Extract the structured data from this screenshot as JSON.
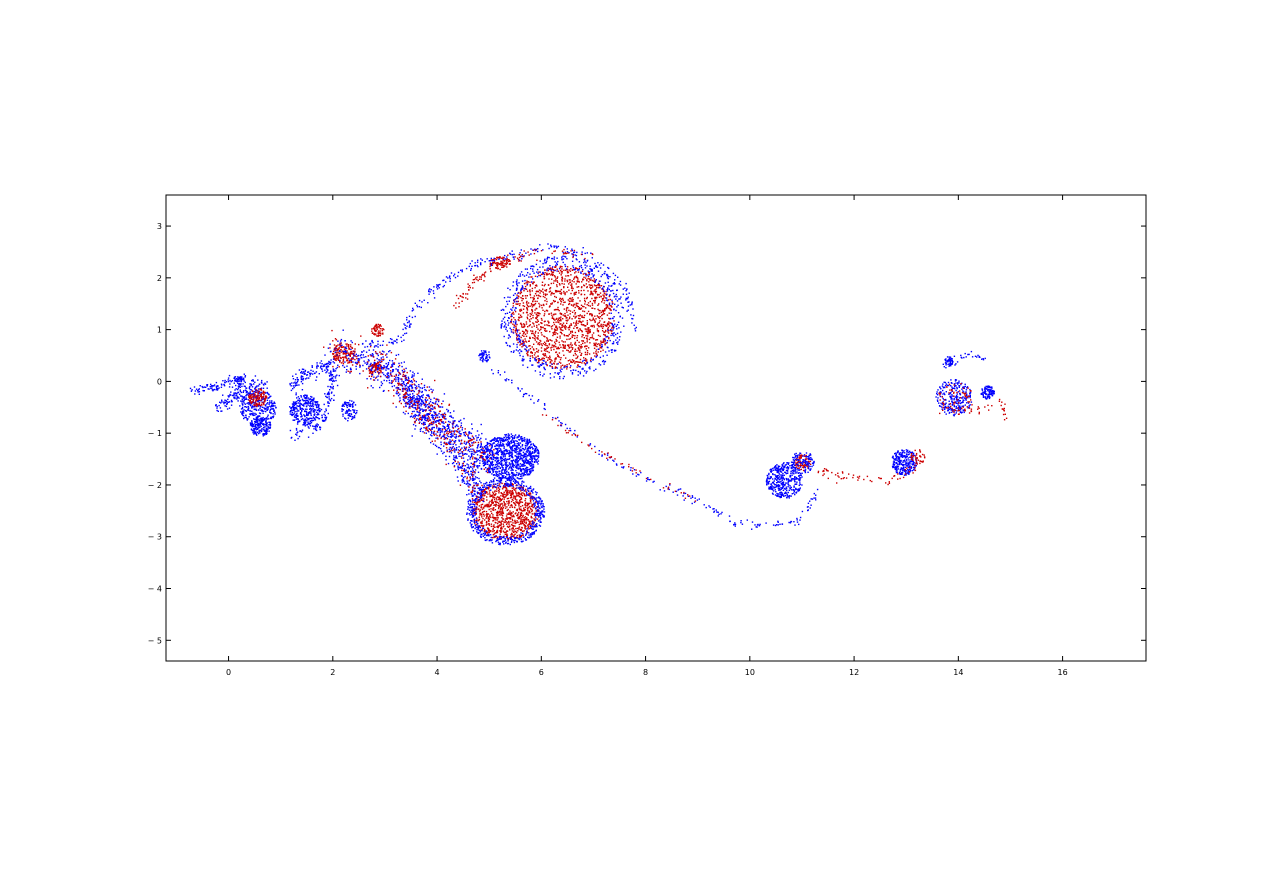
{
  "chart_data": {
    "type": "scatter",
    "title": "",
    "xlabel": "",
    "ylabel": "",
    "xlim": [
      -1.2,
      17.6
    ],
    "ylim": [
      -5.4,
      3.6
    ],
    "xticks": [
      0,
      2,
      4,
      6,
      8,
      10,
      12,
      14,
      16
    ],
    "yticks": [
      3,
      2,
      1,
      0,
      -1,
      -2,
      -3,
      -4,
      -5
    ],
    "xtick_labels": [
      "0",
      "2",
      "4",
      "6",
      "8",
      "10",
      "12",
      "14",
      "16"
    ],
    "ytick_labels": [
      "3",
      "2",
      "1",
      "0",
      "− 1",
      "− 2",
      "− 3",
      "− 4",
      "− 5"
    ],
    "grid": false,
    "legend": "none",
    "series_colors": {
      "blue": "#0000ff",
      "red": "#cc0000"
    },
    "point_clusters": [
      {
        "name": "large-upper-vortex",
        "color": "red",
        "x": 6.4,
        "y": 1.25,
        "radius_x": 1.0,
        "radius_y": 1.0,
        "count": 1400
      },
      {
        "name": "large-upper-vortex-ring",
        "color": "blue",
        "x": 6.4,
        "y": 1.25,
        "radius_x": 1.2,
        "radius_y": 1.2,
        "count": 500,
        "ring": true
      },
      {
        "name": "lower-twin-vortex-top",
        "color": "blue",
        "x": 5.4,
        "y": -1.45,
        "radius_x": 0.55,
        "radius_y": 0.45,
        "count": 900
      },
      {
        "name": "lower-twin-vortex-bottom",
        "color": "red",
        "x": 5.3,
        "y": -2.5,
        "radius_x": 0.65,
        "radius_y": 0.55,
        "count": 900
      },
      {
        "name": "lower-twin-vortex-bottom-blue",
        "color": "blue",
        "x": 5.3,
        "y": -2.5,
        "radius_x": 0.75,
        "radius_y": 0.65,
        "count": 500,
        "ring": true
      },
      {
        "name": "left-vortex-a",
        "color": "blue",
        "x": 0.55,
        "y": -0.5,
        "radius_x": 0.35,
        "radius_y": 0.35,
        "count": 300
      },
      {
        "name": "left-vortex-a-core",
        "color": "red",
        "x": 0.55,
        "y": -0.3,
        "radius_x": 0.18,
        "radius_y": 0.18,
        "count": 120
      },
      {
        "name": "left-vortex-b",
        "color": "blue",
        "x": 0.6,
        "y": -0.85,
        "radius_x": 0.2,
        "radius_y": 0.2,
        "count": 150
      },
      {
        "name": "left-vortex-c",
        "color": "blue",
        "x": 1.45,
        "y": -0.55,
        "radius_x": 0.3,
        "radius_y": 0.3,
        "count": 300
      },
      {
        "name": "mid-small-vortex-a",
        "color": "red",
        "x": 2.2,
        "y": 0.55,
        "radius_x": 0.22,
        "radius_y": 0.2,
        "count": 150
      },
      {
        "name": "mid-small-vortex-b",
        "color": "red",
        "x": 2.85,
        "y": 1.0,
        "radius_x": 0.12,
        "radius_y": 0.12,
        "count": 60
      },
      {
        "name": "mid-small-vortex-c",
        "color": "red",
        "x": 2.8,
        "y": 0.25,
        "radius_x": 0.15,
        "radius_y": 0.12,
        "count": 70
      },
      {
        "name": "mid-small-vortex-d",
        "color": "blue",
        "x": 2.3,
        "y": -0.55,
        "radius_x": 0.15,
        "radius_y": 0.2,
        "count": 80
      },
      {
        "name": "top-small-vortex",
        "color": "red",
        "x": 5.2,
        "y": 2.3,
        "radius_x": 0.2,
        "radius_y": 0.12,
        "count": 80
      },
      {
        "name": "inner-small-vortex",
        "color": "blue",
        "x": 4.9,
        "y": 0.5,
        "radius_x": 0.12,
        "radius_y": 0.12,
        "count": 50
      },
      {
        "name": "right-vortex-a",
        "color": "blue",
        "x": 10.65,
        "y": -1.9,
        "radius_x": 0.35,
        "radius_y": 0.35,
        "count": 400
      },
      {
        "name": "right-vortex-a-core",
        "color": "red",
        "x": 11.0,
        "y": -1.55,
        "radius_x": 0.16,
        "radius_y": 0.16,
        "count": 80
      },
      {
        "name": "right-vortex-a-blue-b",
        "color": "blue",
        "x": 11.0,
        "y": -1.55,
        "radius_x": 0.22,
        "radius_y": 0.22,
        "count": 100
      },
      {
        "name": "right-vortex-b",
        "color": "blue",
        "x": 12.95,
        "y": -1.55,
        "radius_x": 0.25,
        "radius_y": 0.25,
        "count": 250
      },
      {
        "name": "right-vortex-b-red",
        "color": "red",
        "x": 13.2,
        "y": -1.45,
        "radius_x": 0.15,
        "radius_y": 0.15,
        "count": 40
      },
      {
        "name": "far-right-cluster",
        "color": "blue",
        "x": 13.9,
        "y": -0.3,
        "radius_x": 0.35,
        "radius_y": 0.35,
        "count": 250
      },
      {
        "name": "far-right-cluster-red",
        "color": "red",
        "x": 13.95,
        "y": -0.3,
        "radius_x": 0.35,
        "radius_y": 0.3,
        "count": 60
      },
      {
        "name": "far-right-small-a",
        "color": "blue",
        "x": 14.55,
        "y": -0.2,
        "radius_x": 0.13,
        "radius_y": 0.13,
        "count": 100
      },
      {
        "name": "far-right-small-b",
        "color": "blue",
        "x": 13.8,
        "y": 0.4,
        "radius_x": 0.08,
        "radius_y": 0.1,
        "count": 50
      }
    ],
    "filament_paths": [
      {
        "name": "tip-filament",
        "color": "blue",
        "points": [
          [
            -0.75,
            -0.18
          ],
          [
            -0.3,
            -0.1
          ],
          [
            0.1,
            0.05
          ],
          [
            0.3,
            0.05
          ]
        ],
        "spread": 0.04,
        "count": 120
      },
      {
        "name": "left-arc",
        "color": "blue",
        "points": [
          [
            -0.2,
            -0.5
          ],
          [
            0.0,
            -0.3
          ],
          [
            0.3,
            -0.1
          ],
          [
            0.7,
            0.0
          ]
        ],
        "spread": 0.08,
        "count": 150
      },
      {
        "name": "left-swoop",
        "color": "blue",
        "points": [
          [
            1.2,
            -0.1
          ],
          [
            1.4,
            0.1
          ],
          [
            1.8,
            0.3
          ],
          [
            2.0,
            0.2
          ],
          [
            1.9,
            -0.3
          ],
          [
            1.8,
            -0.8
          ],
          [
            1.2,
            -1.0
          ]
        ],
        "spread": 0.08,
        "count": 250
      },
      {
        "name": "upper-streamer",
        "color": "blue",
        "points": [
          [
            2.0,
            0.6
          ],
          [
            2.8,
            0.35
          ],
          [
            3.4,
            0.0
          ],
          [
            4.0,
            -0.6
          ],
          [
            4.6,
            -1.2
          ],
          [
            5.0,
            -1.5
          ]
        ],
        "spread": 0.18,
        "count": 700
      },
      {
        "name": "upper-streamer-red",
        "color": "red",
        "points": [
          [
            2.0,
            0.6
          ],
          [
            2.8,
            0.35
          ],
          [
            3.4,
            0.0
          ],
          [
            4.0,
            -0.6
          ],
          [
            4.6,
            -1.2
          ],
          [
            5.0,
            -1.5
          ]
        ],
        "spread": 0.18,
        "count": 250
      },
      {
        "name": "lower-streamer",
        "color": "blue",
        "points": [
          [
            3.3,
            -0.1
          ],
          [
            3.6,
            -0.5
          ],
          [
            4.0,
            -1.0
          ],
          [
            4.5,
            -1.6
          ],
          [
            4.8,
            -2.2
          ]
        ],
        "spread": 0.15,
        "count": 450
      },
      {
        "name": "lower-streamer-red",
        "color": "red",
        "points": [
          [
            3.3,
            -0.1
          ],
          [
            3.6,
            -0.5
          ],
          [
            4.0,
            -1.0
          ],
          [
            4.5,
            -1.6
          ],
          [
            4.8,
            -2.2
          ]
        ],
        "spread": 0.15,
        "count": 160
      },
      {
        "name": "mid-wisp",
        "color": "blue",
        "points": [
          [
            2.5,
            0.7
          ],
          [
            3.3,
            0.8
          ],
          [
            3.6,
            1.5
          ],
          [
            4.2,
            2.0
          ],
          [
            4.8,
            2.3
          ],
          [
            5.5,
            2.45
          ],
          [
            6.2,
            2.6
          ],
          [
            7.0,
            2.4
          ],
          [
            7.6,
            1.8
          ],
          [
            7.8,
            1.0
          ]
        ],
        "spread": 0.05,
        "count": 250
      },
      {
        "name": "outer-wisp",
        "color": "red",
        "points": [
          [
            4.3,
            1.4
          ],
          [
            4.7,
            1.95
          ],
          [
            5.3,
            2.35
          ],
          [
            6.0,
            2.55
          ],
          [
            7.0,
            2.45
          ]
        ],
        "spread": 0.05,
        "count": 100
      },
      {
        "name": "connecting-strand",
        "color": "blue",
        "points": [
          [
            5.0,
            0.3
          ],
          [
            5.8,
            -0.3
          ],
          [
            6.6,
            -1.0
          ],
          [
            7.5,
            -1.6
          ],
          [
            8.5,
            -2.1
          ],
          [
            9.2,
            -2.4
          ],
          [
            9.7,
            -2.7
          ],
          [
            10.2,
            -2.8
          ],
          [
            10.9,
            -2.7
          ],
          [
            11.3,
            -2.1
          ]
        ],
        "spread": 0.04,
        "count": 180
      },
      {
        "name": "connecting-strand-red",
        "color": "red",
        "points": [
          [
            6.0,
            -0.6
          ],
          [
            7.0,
            -1.3
          ],
          [
            8.0,
            -1.85
          ],
          [
            9.0,
            -2.3
          ]
        ],
        "spread": 0.04,
        "count": 50
      },
      {
        "name": "right-arm",
        "color": "red",
        "points": [
          [
            11.3,
            -1.7
          ],
          [
            11.8,
            -1.85
          ],
          [
            12.6,
            -1.9
          ],
          [
            13.3,
            -1.6
          ]
        ],
        "spread": 0.06,
        "count": 60
      },
      {
        "name": "far-right-arm",
        "color": "red",
        "points": [
          [
            13.6,
            -0.5
          ],
          [
            14.2,
            -0.6
          ],
          [
            14.8,
            -0.4
          ],
          [
            14.9,
            -0.7
          ]
        ],
        "spread": 0.05,
        "count": 40
      },
      {
        "name": "far-right-upper",
        "color": "blue",
        "points": [
          [
            13.7,
            0.3
          ],
          [
            14.2,
            0.55
          ],
          [
            14.5,
            0.45
          ]
        ],
        "spread": 0.04,
        "count": 30
      }
    ]
  }
}
